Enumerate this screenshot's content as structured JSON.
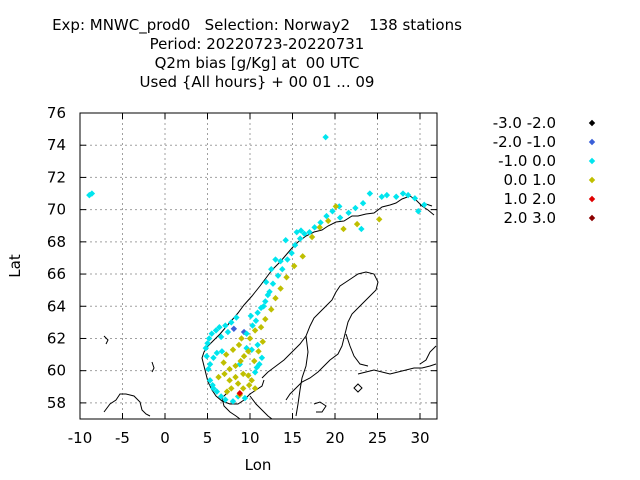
{
  "title_lines": [
    "Exp: MNWC_prod0   Selection: Norway2    138 stations",
    "Period: 20220723-20220731",
    "Q2m bias [g/Kg] at  00 UTC",
    "Used {All hours} + 00 01 ... 09"
  ],
  "chart_data": {
    "type": "scatter",
    "xlabel": "Lon",
    "ylabel": "Lat",
    "xlim": [
      -10,
      32
    ],
    "ylim": [
      57,
      76
    ],
    "xticks": [
      -10,
      -5,
      0,
      5,
      10,
      15,
      20,
      25,
      30
    ],
    "xtick_labels": [
      "-10",
      "-5",
      "0",
      "5",
      "10",
      "15",
      "20",
      "25",
      "30"
    ],
    "yticks": [
      58,
      60,
      62,
      64,
      66,
      68,
      70,
      72,
      74,
      76
    ],
    "ytick_labels": [
      "58",
      "60",
      "62",
      "64",
      "66",
      "68",
      "70",
      "72",
      "74",
      "76"
    ],
    "grid": true,
    "legend_position": "right",
    "series": [
      {
        "name": "-3.0 -2.0",
        "color": "#000000",
        "points": []
      },
      {
        "name": "-2.0 -1.0",
        "color": "#3a5fd8",
        "points": [
          [
            8.1,
            62.6
          ],
          [
            9.3,
            62.4
          ]
        ]
      },
      {
        "name": "-1.0 0.0",
        "color": "#00e5ee",
        "points": [
          [
            -8.6,
            71.0
          ],
          [
            -8.9,
            70.9
          ],
          [
            18.9,
            74.5
          ],
          [
            5.0,
            61.7
          ],
          [
            4.8,
            61.4
          ],
          [
            5.2,
            62.0
          ],
          [
            5.5,
            62.3
          ],
          [
            6.0,
            62.5
          ],
          [
            6.4,
            62.7
          ],
          [
            7.1,
            62.8
          ],
          [
            7.8,
            63.0
          ],
          [
            8.4,
            63.3
          ],
          [
            5.3,
            60.4
          ],
          [
            5.1,
            60.1
          ],
          [
            5.7,
            60.8
          ],
          [
            6.1,
            61.1
          ],
          [
            6.7,
            61.2
          ],
          [
            5.3,
            59.4
          ],
          [
            5.6,
            59.1
          ],
          [
            5.7,
            58.9
          ],
          [
            6.1,
            58.7
          ],
          [
            6.6,
            58.4
          ],
          [
            7.1,
            58.2
          ],
          [
            8.0,
            58.1
          ],
          [
            8.6,
            58.4
          ],
          [
            10.6,
            59.9
          ],
          [
            10.8,
            60.2
          ],
          [
            11.1,
            60.4
          ],
          [
            11.4,
            60.8
          ],
          [
            10.2,
            61.3
          ],
          [
            10.9,
            61.6
          ],
          [
            9.6,
            62.3
          ],
          [
            10.3,
            62.8
          ],
          [
            10.1,
            63.4
          ],
          [
            10.9,
            63.6
          ],
          [
            11.3,
            63.9
          ],
          [
            11.8,
            64.3
          ],
          [
            12.3,
            64.9
          ],
          [
            12.7,
            65.4
          ],
          [
            13.3,
            65.9
          ],
          [
            13.8,
            66.3
          ],
          [
            14.4,
            66.9
          ],
          [
            14.9,
            67.3
          ],
          [
            15.3,
            67.8
          ],
          [
            15.9,
            68.2
          ],
          [
            16.4,
            68.5
          ],
          [
            17.0,
            68.6
          ],
          [
            17.6,
            68.9
          ],
          [
            18.3,
            69.2
          ],
          [
            19.0,
            69.6
          ],
          [
            19.7,
            69.9
          ],
          [
            20.6,
            69.5
          ],
          [
            21.6,
            69.8
          ],
          [
            22.4,
            70.1
          ],
          [
            23.3,
            70.4
          ],
          [
            24.1,
            71.0
          ],
          [
            25.5,
            70.8
          ],
          [
            26.1,
            70.9
          ],
          [
            27.2,
            70.8
          ],
          [
            28.0,
            71.0
          ],
          [
            28.6,
            70.9
          ],
          [
            29.4,
            70.7
          ],
          [
            30.5,
            70.3
          ],
          [
            29.8,
            69.9
          ],
          [
            23.1,
            68.8
          ],
          [
            15.5,
            68.6
          ],
          [
            14.2,
            68.1
          ],
          [
            12.5,
            66.3
          ],
          [
            13.0,
            66.9
          ],
          [
            11.9,
            65.5
          ],
          [
            9.6,
            61.4
          ],
          [
            6.6,
            62.1
          ],
          [
            7.4,
            62.4
          ],
          [
            8.8,
            60.4
          ],
          [
            4.9,
            60.9
          ],
          [
            9.4,
            58.3
          ],
          [
            10.7,
            63.1
          ],
          [
            11.6,
            64.0
          ],
          [
            13.6,
            66.8
          ],
          [
            16.0,
            68.7
          ],
          [
            12.1,
            64.7
          ],
          [
            20.5,
            70.2
          ]
        ]
      },
      {
        "name": "0.0 1.0",
        "color": "#bfbf00",
        "points": [
          [
            6.3,
            59.6
          ],
          [
            7.0,
            59.8
          ],
          [
            7.6,
            60.1
          ],
          [
            8.3,
            60.3
          ],
          [
            8.9,
            60.6
          ],
          [
            9.3,
            60.9
          ],
          [
            9.8,
            61.2
          ],
          [
            7.2,
            61.0
          ],
          [
            8.0,
            61.3
          ],
          [
            8.7,
            61.6
          ],
          [
            9.0,
            62.0
          ],
          [
            10.0,
            62.0
          ],
          [
            7.6,
            59.4
          ],
          [
            8.3,
            59.6
          ],
          [
            9.2,
            59.8
          ],
          [
            9.8,
            59.7
          ],
          [
            8.6,
            59.2
          ],
          [
            9.2,
            58.9
          ],
          [
            8.8,
            58.5
          ],
          [
            7.3,
            58.7
          ],
          [
            7.8,
            58.9
          ],
          [
            10.2,
            59.4
          ],
          [
            10.6,
            58.9
          ],
          [
            9.9,
            59.1
          ],
          [
            11.0,
            61.2
          ],
          [
            11.5,
            61.8
          ],
          [
            10.6,
            62.5
          ],
          [
            11.3,
            62.7
          ],
          [
            11.8,
            63.2
          ],
          [
            12.5,
            63.8
          ],
          [
            13.0,
            64.5
          ],
          [
            13.6,
            65.1
          ],
          [
            14.3,
            65.8
          ],
          [
            15.2,
            66.5
          ],
          [
            16.2,
            67.1
          ],
          [
            17.3,
            68.3
          ],
          [
            18.2,
            68.9
          ],
          [
            19.2,
            69.3
          ],
          [
            20.1,
            70.2
          ],
          [
            21.0,
            68.8
          ],
          [
            22.6,
            69.1
          ],
          [
            25.2,
            69.4
          ],
          [
            6.9,
            60.5
          ],
          [
            10.5,
            60.6
          ]
        ]
      },
      {
        "name": "1.0 2.0",
        "color": "#e00000",
        "points": [
          [
            8.8,
            58.6
          ]
        ]
      },
      {
        "name": "2.0 3.0",
        "color": "#8b0000",
        "points": []
      }
    ]
  }
}
